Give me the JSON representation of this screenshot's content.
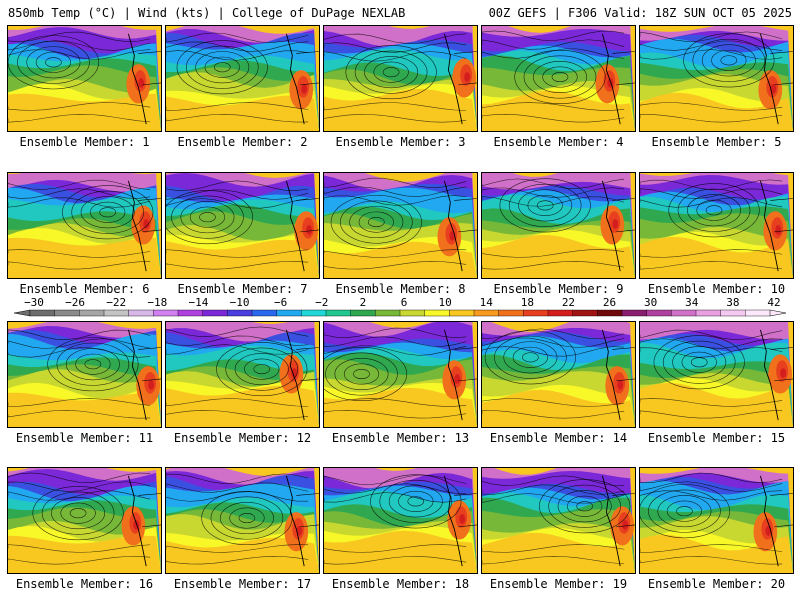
{
  "header": {
    "left": "850mb Temp (°C) | Wind (kts) | College of DuPage NEXLAB",
    "right": "00Z GEFS | F306 Valid: 18Z SUN OCT 05 2025"
  },
  "panels": [
    {
      "label": "Ensemble Member: 1"
    },
    {
      "label": "Ensemble Member: 2"
    },
    {
      "label": "Ensemble Member: 3"
    },
    {
      "label": "Ensemble Member: 4"
    },
    {
      "label": "Ensemble Member: 5"
    },
    {
      "label": "Ensemble Member: 6"
    },
    {
      "label": "Ensemble Member: 7"
    },
    {
      "label": "Ensemble Member: 8"
    },
    {
      "label": "Ensemble Member: 9"
    },
    {
      "label": "Ensemble Member: 10"
    },
    {
      "label": "Ensemble Member: 11"
    },
    {
      "label": "Ensemble Member: 12"
    },
    {
      "label": "Ensemble Member: 13"
    },
    {
      "label": "Ensemble Member: 14"
    },
    {
      "label": "Ensemble Member: 15"
    },
    {
      "label": "Ensemble Member: 16"
    },
    {
      "label": "Ensemble Member: 17"
    },
    {
      "label": "Ensemble Member: 18"
    },
    {
      "label": "Ensemble Member: 19"
    },
    {
      "label": "Ensemble Member: 20"
    }
  ],
  "colorbar": {
    "ticks": [
      "−30",
      "−26",
      "−22",
      "−18",
      "−14",
      "−10",
      "−6",
      "−2",
      "2",
      "6",
      "10",
      "14",
      "18",
      "22",
      "26",
      "30",
      "34",
      "38",
      "42"
    ],
    "colors": [
      "#6e6e6e",
      "#8a8a8a",
      "#a6a6a6",
      "#c4c4c4",
      "#d8b8e8",
      "#d080f0",
      "#b040e0",
      "#7a28d8",
      "#4a3ee0",
      "#2a68f0",
      "#22a8f0",
      "#20d8d8",
      "#20c890",
      "#30a850",
      "#78b838",
      "#c8d830",
      "#f8f828",
      "#f8c820",
      "#f89a1e",
      "#f0701c",
      "#e8401e",
      "#d41e1e",
      "#a01414",
      "#700a0a",
      "#8a1e6e",
      "#b040a0",
      "#d070c8",
      "#e8a0e0",
      "#f4c8f0",
      "#fce8fa"
    ]
  }
}
